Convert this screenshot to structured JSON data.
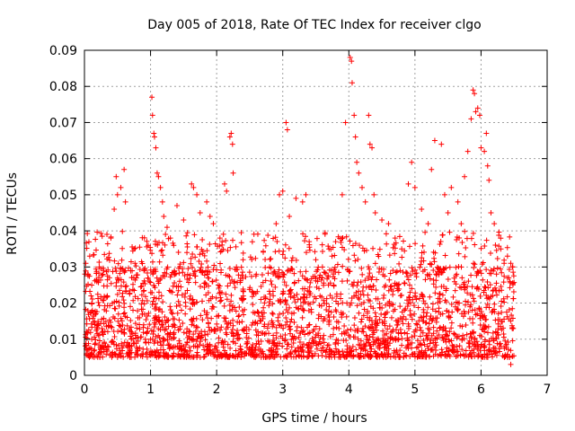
{
  "chart_data": {
    "type": "scatter",
    "title": "Day 005 of 2018, Rate Of TEC Index for receiver clgo",
    "xlabel": "GPS time / hours",
    "ylabel": "ROTI / TECUs",
    "xlim": [
      0,
      7
    ],
    "ylim": [
      0,
      0.09
    ],
    "x_ticks": [
      0,
      1,
      2,
      3,
      4,
      5,
      6,
      7
    ],
    "x_tick_labels": [
      "0",
      "1",
      "2",
      "3",
      "4",
      "5",
      "6",
      "7"
    ],
    "y_ticks": [
      0,
      0.01,
      0.02,
      0.03,
      0.04,
      0.05,
      0.06,
      0.07,
      0.08,
      0.09
    ],
    "y_tick_labels": [
      "0",
      "0.01",
      "0.02",
      "0.03",
      "0.04",
      "0.05",
      "0.06",
      "0.07",
      "0.08",
      "0.09"
    ],
    "grid": true,
    "marker": "+",
    "marker_color": "#ff0000",
    "series": [
      {
        "name": "ROTI",
        "x_range": [
          0.0,
          6.5
        ],
        "points": [
          [
            0.02,
            0.031
          ],
          [
            0.05,
            0.028
          ],
          [
            0.08,
            0.033
          ],
          [
            0.1,
            0.022
          ],
          [
            0.12,
            0.018
          ],
          [
            0.4,
            0.038
          ],
          [
            0.45,
            0.046
          ],
          [
            0.48,
            0.055
          ],
          [
            0.5,
            0.05
          ],
          [
            0.55,
            0.052
          ],
          [
            0.6,
            0.057
          ],
          [
            0.62,
            0.048
          ],
          [
            0.75,
            0.035
          ],
          [
            0.9,
            0.029
          ],
          [
            1.02,
            0.077
          ],
          [
            1.03,
            0.072
          ],
          [
            1.05,
            0.067
          ],
          [
            1.06,
            0.066
          ],
          [
            1.08,
            0.063
          ],
          [
            1.1,
            0.056
          ],
          [
            1.12,
            0.055
          ],
          [
            1.15,
            0.052
          ],
          [
            1.18,
            0.048
          ],
          [
            1.2,
            0.044
          ],
          [
            1.25,
            0.041
          ],
          [
            1.3,
            0.038
          ],
          [
            1.35,
            0.036
          ],
          [
            1.4,
            0.047
          ],
          [
            1.5,
            0.043
          ],
          [
            1.55,
            0.034
          ],
          [
            1.62,
            0.053
          ],
          [
            1.65,
            0.052
          ],
          [
            1.7,
            0.05
          ],
          [
            1.75,
            0.045
          ],
          [
            1.85,
            0.048
          ],
          [
            1.9,
            0.044
          ],
          [
            1.95,
            0.042
          ],
          [
            2.05,
            0.038
          ],
          [
            2.12,
            0.053
          ],
          [
            2.15,
            0.051
          ],
          [
            2.2,
            0.066
          ],
          [
            2.22,
            0.067
          ],
          [
            2.24,
            0.064
          ],
          [
            2.25,
            0.056
          ],
          [
            2.3,
            0.03
          ],
          [
            2.4,
            0.032
          ],
          [
            2.6,
            0.028
          ],
          [
            2.8,
            0.03
          ],
          [
            2.9,
            0.042
          ],
          [
            2.95,
            0.05
          ],
          [
            3.0,
            0.051
          ],
          [
            3.05,
            0.07
          ],
          [
            3.07,
            0.068
          ],
          [
            3.1,
            0.044
          ],
          [
            3.2,
            0.049
          ],
          [
            3.3,
            0.048
          ],
          [
            3.35,
            0.05
          ],
          [
            3.4,
            0.037
          ],
          [
            3.5,
            0.032
          ],
          [
            3.6,
            0.03
          ],
          [
            3.7,
            0.035
          ],
          [
            3.8,
            0.037
          ],
          [
            3.9,
            0.05
          ],
          [
            3.95,
            0.07
          ],
          [
            4.02,
            0.088
          ],
          [
            4.04,
            0.087
          ],
          [
            4.05,
            0.081
          ],
          [
            4.08,
            0.072
          ],
          [
            4.1,
            0.066
          ],
          [
            4.12,
            0.059
          ],
          [
            4.15,
            0.056
          ],
          [
            4.2,
            0.052
          ],
          [
            4.25,
            0.048
          ],
          [
            4.3,
            0.072
          ],
          [
            4.32,
            0.064
          ],
          [
            4.35,
            0.063
          ],
          [
            4.38,
            0.05
          ],
          [
            4.4,
            0.045
          ],
          [
            4.5,
            0.043
          ],
          [
            4.6,
            0.042
          ],
          [
            4.7,
            0.038
          ],
          [
            4.8,
            0.035
          ],
          [
            4.9,
            0.053
          ],
          [
            4.95,
            0.059
          ],
          [
            5.0,
            0.052
          ],
          [
            5.1,
            0.046
          ],
          [
            5.2,
            0.042
          ],
          [
            5.25,
            0.057
          ],
          [
            5.3,
            0.065
          ],
          [
            5.4,
            0.064
          ],
          [
            5.45,
            0.05
          ],
          [
            5.5,
            0.045
          ],
          [
            5.55,
            0.052
          ],
          [
            5.65,
            0.048
          ],
          [
            5.7,
            0.042
          ],
          [
            5.75,
            0.055
          ],
          [
            5.8,
            0.062
          ],
          [
            5.85,
            0.071
          ],
          [
            5.88,
            0.079
          ],
          [
            5.9,
            0.078
          ],
          [
            5.92,
            0.073
          ],
          [
            5.95,
            0.074
          ],
          [
            5.98,
            0.072
          ],
          [
            6.0,
            0.063
          ],
          [
            6.05,
            0.062
          ],
          [
            6.08,
            0.067
          ],
          [
            6.1,
            0.058
          ],
          [
            6.12,
            0.054
          ],
          [
            6.15,
            0.045
          ],
          [
            6.2,
            0.042
          ],
          [
            6.3,
            0.035
          ],
          [
            6.4,
            0.033
          ],
          [
            6.45,
            0.031
          ],
          [
            6.48,
            0.03
          ],
          [
            0.3,
            0.008
          ],
          [
            1.0,
            0.01
          ],
          [
            1.5,
            0.008
          ],
          [
            2.1,
            0.009
          ],
          [
            2.7,
            0.006
          ],
          [
            3.3,
            0.007
          ],
          [
            3.8,
            0.009
          ],
          [
            4.4,
            0.006
          ],
          [
            5.0,
            0.006
          ],
          [
            5.6,
            0.007
          ],
          [
            6.0,
            0.008
          ],
          [
            6.45,
            0.003
          ],
          [
            6.43,
            0.005
          ],
          [
            0.03,
            0.006
          ],
          [
            0.05,
            0.007
          ]
        ],
        "bulk_band": [
          0.005,
          0.03
        ],
        "bulk_distribution_note": "dense cloud of points concentrated mostly between 0.005 and 0.03 across the full time range"
      }
    ]
  }
}
